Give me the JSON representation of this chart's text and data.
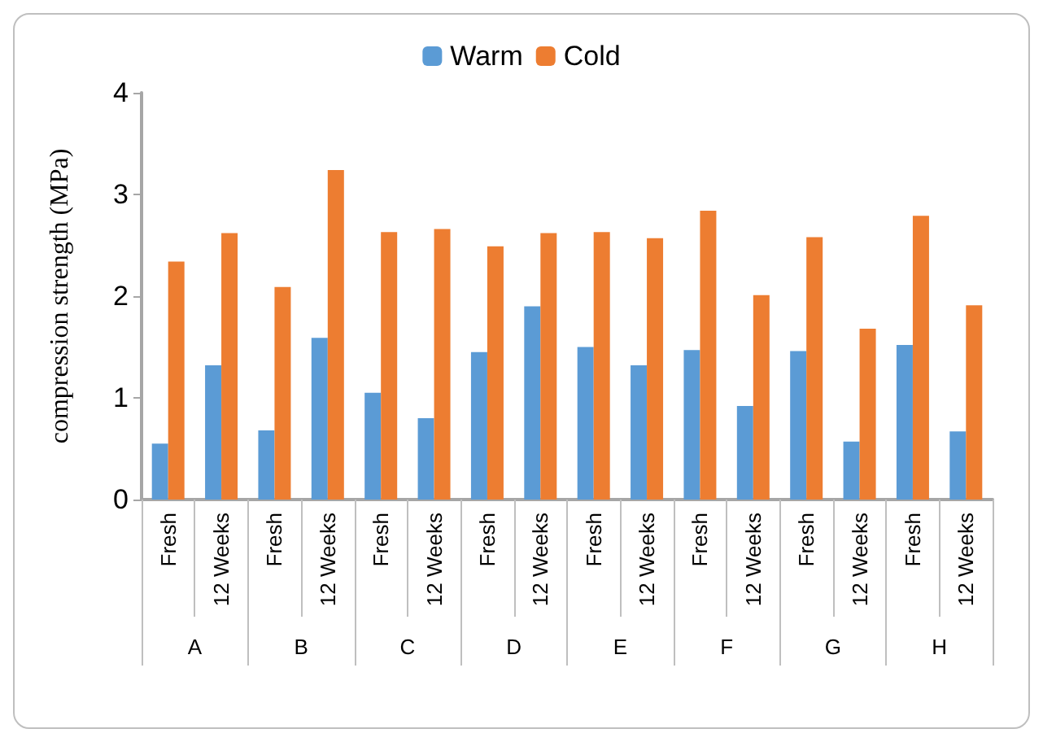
{
  "chart_data": {
    "type": "bar",
    "ylabel": "compression strength (MPa)",
    "categories": [
      "Fresh",
      "12 Weeks",
      "Fresh",
      "12 Weeks",
      "Fresh",
      "12 Weeks",
      "Fresh",
      "12 Weeks",
      "Fresh",
      "12 Weeks",
      "Fresh",
      "12 Weeks",
      "Fresh",
      "12 Weeks",
      "Fresh",
      "12 Weeks"
    ],
    "annotations": [
      "A",
      "B",
      "C",
      "D",
      "E",
      "F",
      "G",
      "H"
    ],
    "series": [
      {
        "name": "Warm",
        "color": "#5b9bd5",
        "values": [
          0.55,
          1.32,
          0.68,
          1.59,
          1.05,
          0.8,
          1.45,
          1.9,
          1.5,
          1.32,
          1.47,
          0.92,
          1.46,
          0.57,
          1.52,
          0.67
        ]
      },
      {
        "name": "Cold",
        "color": "#ed7d31",
        "values": [
          2.34,
          2.62,
          2.09,
          3.24,
          2.63,
          2.66,
          2.49,
          2.62,
          2.63,
          2.57,
          2.84,
          2.01,
          2.58,
          1.68,
          2.79,
          1.91
        ]
      }
    ],
    "ylim": [
      0,
      4
    ],
    "yticks": [
      0,
      1,
      2,
      3,
      4
    ],
    "grid": false,
    "legend": "top"
  }
}
